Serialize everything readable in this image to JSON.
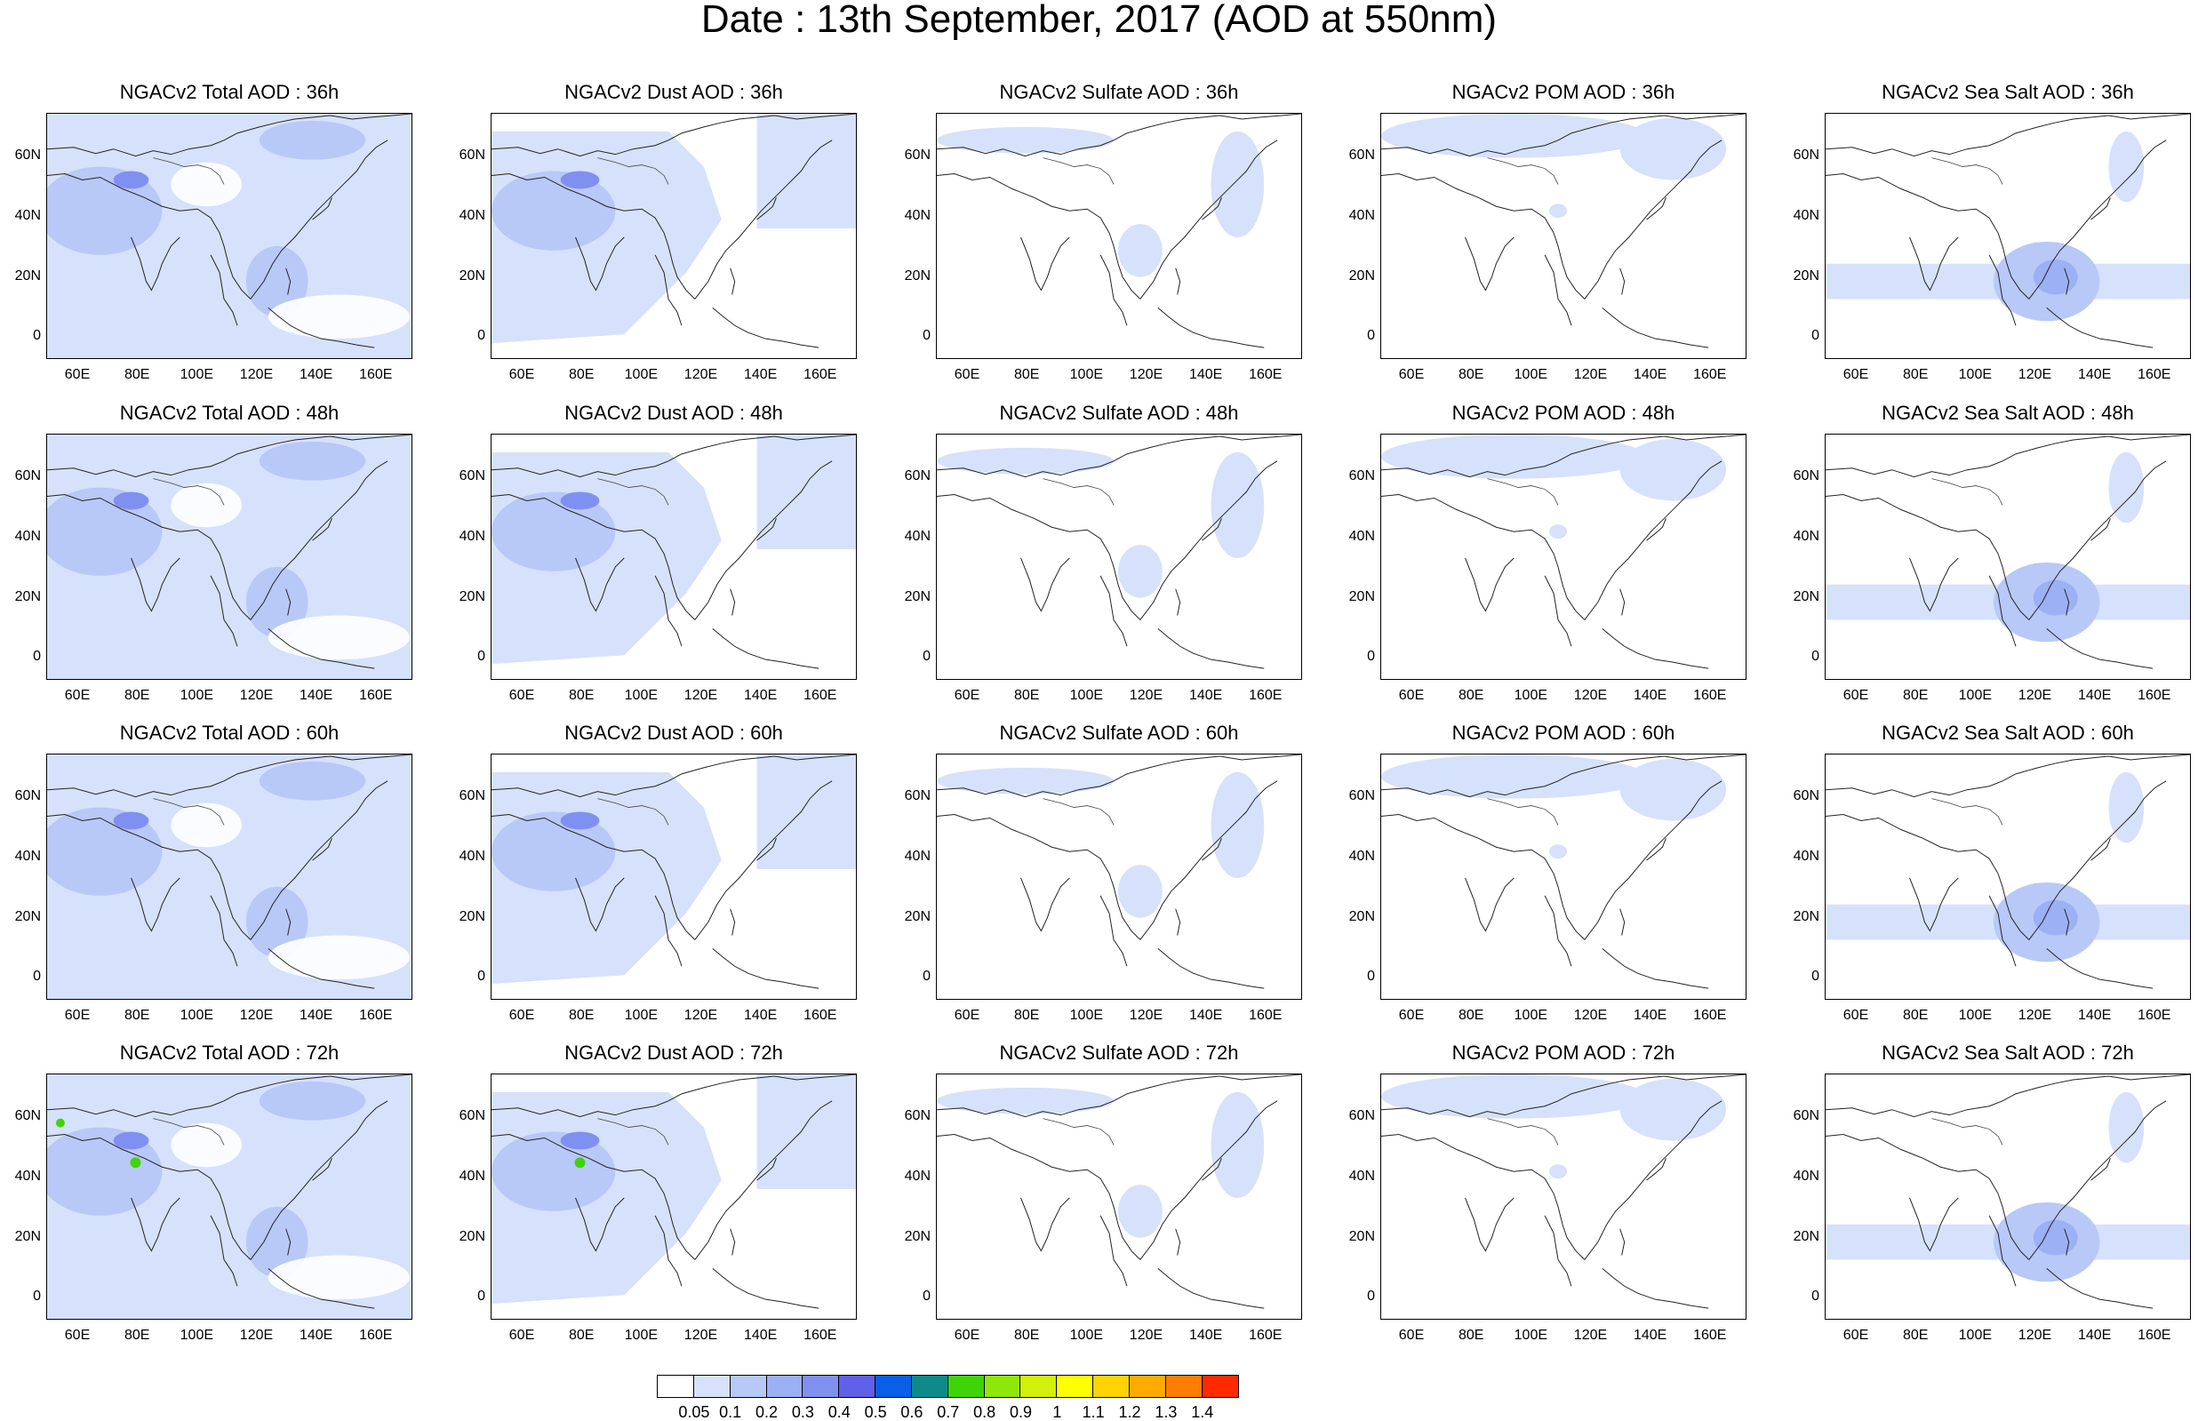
{
  "title": "Date : 13th September, 2017 (AOD at 550nm)",
  "lat_ticks": [
    "60N",
    "40N",
    "20N",
    "0"
  ],
  "lon_ticks": [
    "60E",
    "80E",
    "100E",
    "120E",
    "140E",
    "160E"
  ],
  "panels": [
    [
      "NGACv2 Total AOD : 36h",
      "NGACv2 Dust AOD : 36h",
      "NGACv2 Sulfate AOD : 36h",
      "NGACv2 POM AOD : 36h",
      "NGACv2 Sea Salt AOD : 36h"
    ],
    [
      "NGACv2 Total AOD : 48h",
      "NGACv2 Dust AOD : 48h",
      "NGACv2 Sulfate AOD : 48h",
      "NGACv2 POM AOD : 48h",
      "NGACv2 Sea Salt AOD : 48h"
    ],
    [
      "NGACv2 Total AOD : 60h",
      "NGACv2 Dust AOD : 60h",
      "NGACv2 Sulfate AOD : 60h",
      "NGACv2 POM AOD : 60h",
      "NGACv2 Sea Salt AOD : 60h"
    ],
    [
      "NGACv2 Total AOD : 72h",
      "NGACv2 Dust AOD : 72h",
      "NGACv2 Sulfate AOD : 72h",
      "NGACv2 POM AOD : 72h",
      "NGACv2 Sea Salt  AOD : 72h"
    ]
  ],
  "colorbar": {
    "labels": [
      "0.05",
      "0.1",
      "0.2",
      "0.3",
      "0.4",
      "0.5",
      "0.6",
      "0.7",
      "0.8",
      "0.9",
      "1",
      "1.1",
      "1.2",
      "1.3",
      "1.4"
    ],
    "colors": [
      "#ffffff",
      "#d6e1fb",
      "#b8c8f7",
      "#9cb0f4",
      "#8090f0",
      "#6060e8",
      "#0b5ee6",
      "#0e8a8a",
      "#3fd40a",
      "#8fe60a",
      "#d2f00a",
      "#ffff00",
      "#ffd200",
      "#ffaa00",
      "#ff7d00",
      "#ff2a00"
    ]
  }
}
